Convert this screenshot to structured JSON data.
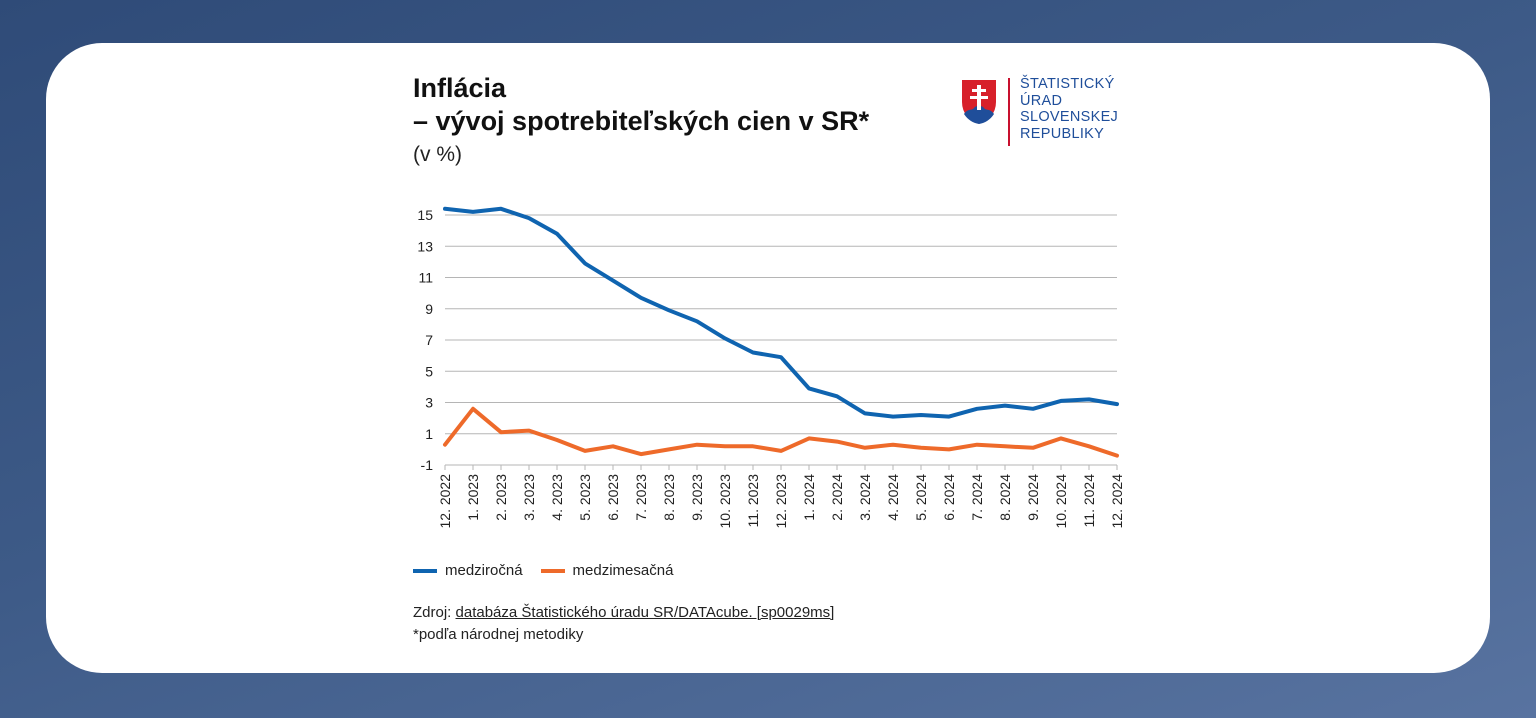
{
  "page": {
    "title_line1": "Inflácia",
    "title_line2": "– vývoj spotrebiteľských cien v SR*",
    "subtitle": "(v %)",
    "logo": {
      "icon": "slovak-coat-of-arms-icon",
      "lines": [
        "ŠTATISTICKÝ",
        "ÚRAD",
        "SLOVENSKEJ",
        "REPUBLIKY"
      ]
    },
    "source_prefix": "Zdroj:",
    "source_link": "databáza Štatistického úradu SR/DATAcube. [sp0029ms]",
    "footnote": "*podľa národnej metodiky"
  },
  "colors": {
    "yoy": "#0f64b0",
    "mom": "#ee6a2a",
    "grid": "#b5b5b5"
  },
  "chart_data": {
    "type": "line",
    "title": "Inflácia – vývoj spotrebiteľských cien v SR*",
    "subtitle": "(v %)",
    "categories": [
      "12. 2022",
      "1. 2023",
      "2. 2023",
      "3. 2023",
      "4. 2023",
      "5. 2023",
      "6. 2023",
      "7. 2023",
      "8. 2023",
      "9. 2023",
      "10. 2023",
      "11. 2023",
      "12. 2023",
      "1. 2024",
      "2. 2024",
      "3. 2024",
      "4. 2024",
      "5. 2024",
      "6. 2024",
      "7. 2024",
      "8. 2024",
      "9. 2024",
      "10. 2024",
      "11. 2024",
      "12. 2024"
    ],
    "series": [
      {
        "name": "medziročná",
        "values": [
          15.4,
          15.2,
          15.4,
          14.8,
          13.8,
          11.9,
          10.8,
          9.7,
          8.9,
          8.2,
          7.1,
          6.2,
          5.9,
          3.9,
          3.4,
          2.3,
          2.1,
          2.2,
          2.1,
          2.6,
          2.8,
          2.6,
          3.1,
          3.2,
          2.9
        ]
      },
      {
        "name": "medzimesačná",
        "values": [
          0.3,
          2.6,
          1.1,
          1.2,
          0.6,
          -0.1,
          0.2,
          -0.3,
          0.0,
          0.3,
          0.2,
          0.2,
          -0.1,
          0.7,
          0.5,
          0.1,
          0.3,
          0.1,
          0.0,
          0.3,
          0.2,
          0.1,
          0.7,
          0.2,
          -0.4
        ]
      }
    ],
    "y_ticks": [
      -1,
      1,
      3,
      5,
      7,
      9,
      11,
      13,
      15
    ],
    "ylim": [
      -1,
      15
    ],
    "grid": true,
    "legend": "bottom-left"
  }
}
